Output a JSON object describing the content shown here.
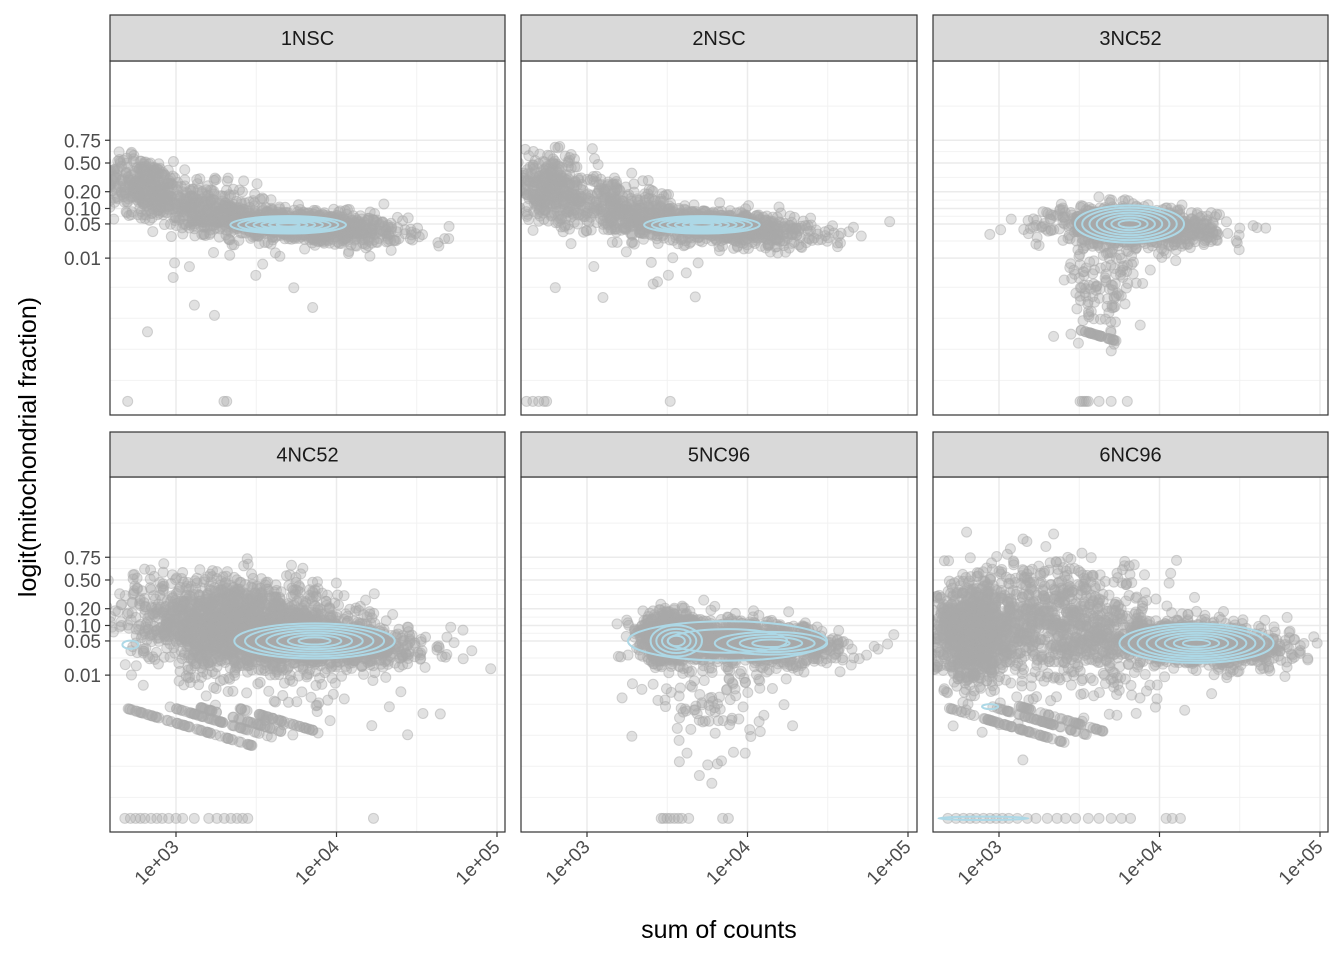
{
  "chart_data": {
    "type": "scatter",
    "xlabel": "sum of counts",
    "ylabel": "logit(mitochondrial fraction)",
    "x_scale": "log10",
    "y_scale": "logit",
    "xlim": [
      390,
      112000
    ],
    "x_ticks": [
      1000,
      10000,
      100000
    ],
    "x_tick_labels": [
      "1e+03",
      "1e+04",
      "1e+05"
    ],
    "y_ticks": [
      0.75,
      0.5,
      0.2,
      0.1,
      0.05,
      0.01
    ],
    "y_tick_labels": [
      "0.75",
      "0.50",
      "0.20",
      "0.10",
      "0.05",
      "0.01"
    ],
    "grid": true,
    "point_color": "#a9a9a9",
    "contour_color": "#add8e6",
    "strip_color": "#d9d9d9",
    "panels": [
      {
        "title": "1NSC",
        "clusters": [
          {
            "counts": 6300,
            "fraction": 0.045,
            "log10_sd": 0.3,
            "logit_sd": 0.4,
            "slope": -0.6,
            "n": 900
          },
          {
            "counts": 630,
            "fraction": 0.25,
            "log10_sd": 0.13,
            "logit_sd": 0.7,
            "slope": -1.2,
            "n": 350
          },
          {
            "counts": 1600,
            "fraction": 0.1,
            "log10_sd": 0.2,
            "logit_sd": 0.6,
            "slope": -1.0,
            "n": 350
          },
          {
            "counts": 2000,
            "fraction": 0.004,
            "log10_sd": 0.3,
            "logit_sd": 1.2,
            "slope": 0,
            "n": 12
          }
        ],
        "streaks": [],
        "zeros": {
          "counts": [
            500,
            1990,
            2070
          ],
          "fraction": 1e-05
        },
        "contours": [
          {
            "counts": 5000,
            "fraction": 0.048,
            "log10_rx": 0.36,
            "logit_ry": 0.42,
            "levels": 7
          }
        ]
      },
      {
        "title": "2NSC",
        "clusters": [
          {
            "counts": 6300,
            "fraction": 0.045,
            "log10_sd": 0.3,
            "logit_sd": 0.4,
            "slope": -0.6,
            "n": 900
          },
          {
            "counts": 600,
            "fraction": 0.22,
            "log10_sd": 0.14,
            "logit_sd": 0.8,
            "slope": -1.2,
            "n": 350
          },
          {
            "counts": 1600,
            "fraction": 0.1,
            "log10_sd": 0.2,
            "logit_sd": 0.6,
            "slope": -1.0,
            "n": 300
          },
          {
            "counts": 1800,
            "fraction": 0.004,
            "log10_sd": 0.3,
            "logit_sd": 1.2,
            "slope": 0,
            "n": 12
          }
        ],
        "streaks": [],
        "zeros": {
          "counts": [
            420,
            460,
            500,
            540,
            560,
            3300
          ],
          "fraction": 1e-05
        },
        "contours": [
          {
            "counts": 5200,
            "fraction": 0.048,
            "log10_rx": 0.36,
            "logit_ry": 0.42,
            "levels": 7
          }
        ]
      },
      {
        "title": "3NC52",
        "clusters": [
          {
            "counts": 7000,
            "fraction": 0.045,
            "log10_sd": 0.25,
            "logit_sd": 0.45,
            "slope": -0.3,
            "n": 900
          },
          {
            "counts": 4500,
            "fraction": 0.003,
            "log10_sd": 0.12,
            "logit_sd": 1.3,
            "slope": 0,
            "n": 130
          }
        ],
        "streaks": [
          {
            "k": 1,
            "counts": [
              3100,
              5600
            ],
            "n": 30
          }
        ],
        "zeros": {
          "counts": [
            3200,
            3300,
            3400,
            3500,
            3600,
            4200,
            5000,
            6300
          ],
          "fraction": 1e-05
        },
        "contours": [
          {
            "counts": 6500,
            "fraction": 0.05,
            "log10_rx": 0.34,
            "logit_ry": 0.9,
            "levels": 7
          }
        ]
      },
      {
        "title": "4NC52",
        "clusters": [
          {
            "counts": 2400,
            "fraction": 0.1,
            "log10_sd": 0.33,
            "logit_sd": 1.1,
            "slope": -0.6,
            "n": 1800
          },
          {
            "counts": 8000,
            "fraction": 0.05,
            "log10_sd": 0.28,
            "logit_sd": 0.5,
            "slope": -0.5,
            "n": 1200
          },
          {
            "counts": 8000,
            "fraction": 0.004,
            "log10_sd": 0.3,
            "logit_sd": 1.2,
            "slope": 0,
            "n": 40
          }
        ],
        "streaks": [
          {
            "k": 1,
            "counts": [
              480,
              3000
            ],
            "n": 60
          },
          {
            "k": 2,
            "counts": [
              900,
              4000
            ],
            "n": 50
          },
          {
            "k": 3,
            "counts": [
              1400,
              5500
            ],
            "n": 40
          },
          {
            "k": 5,
            "counts": [
              2500,
              7500
            ],
            "n": 40
          }
        ],
        "zeros": {
          "counts": [
            480,
            520,
            560,
            600,
            640,
            700,
            760,
            820,
            900,
            1000,
            1100,
            1300,
            1600,
            1800,
            2000,
            2200,
            2400,
            2600,
            2800,
            17000
          ],
          "fraction": 1e-05
        },
        "contours": [
          {
            "counts": 7300,
            "fraction": 0.05,
            "log10_rx": 0.5,
            "logit_ry": 0.85,
            "levels": 7
          },
          {
            "counts": 520,
            "fraction": 0.042,
            "log10_rx": 0.05,
            "logit_ry": 0.2,
            "levels": 1
          }
        ]
      },
      {
        "title": "5NC96",
        "clusters": [
          {
            "counts": 3300,
            "fraction": 0.06,
            "log10_sd": 0.1,
            "logit_sd": 0.6,
            "slope": 0,
            "n": 800
          },
          {
            "counts": 11000,
            "fraction": 0.045,
            "log10_sd": 0.27,
            "logit_sd": 0.5,
            "slope": -0.5,
            "n": 1000
          },
          {
            "counts": 6000,
            "fraction": 0.003,
            "log10_sd": 0.2,
            "logit_sd": 1.3,
            "slope": 0,
            "n": 100
          }
        ],
        "streaks": [],
        "zeros": {
          "counts": [
            2900,
            3000,
            3150,
            3300,
            3500,
            3700,
            3900,
            4300,
            7000,
            7600
          ],
          "fraction": 1e-05
        },
        "contours": [
          {
            "counts": 3600,
            "fraction": 0.05,
            "log10_rx": 0.16,
            "logit_ry": 0.75,
            "levels": 4
          },
          {
            "counts": 14000,
            "fraction": 0.045,
            "log10_rx": 0.35,
            "logit_ry": 0.55,
            "levels": 4
          },
          {
            "counts": 7500,
            "fraction": 0.05,
            "log10_rx": 0.62,
            "logit_ry": 0.95,
            "levels": 2
          }
        ]
      },
      {
        "title": "6NC96",
        "clusters": [
          {
            "counts": 700,
            "fraction": 0.07,
            "log10_sd": 0.12,
            "logit_sd": 1.2,
            "slope": 0,
            "n": 1000
          },
          {
            "counts": 2400,
            "fraction": 0.12,
            "log10_sd": 0.3,
            "logit_sd": 1.4,
            "slope": -0.5,
            "n": 800
          },
          {
            "counts": 16000,
            "fraction": 0.045,
            "log10_sd": 0.28,
            "logit_sd": 0.5,
            "slope": -0.5,
            "n": 1200
          },
          {
            "counts": 5000,
            "fraction": 0.004,
            "log10_sd": 0.3,
            "logit_sd": 1.1,
            "slope": 0,
            "n": 40
          }
        ],
        "streaks": [
          {
            "k": 1,
            "counts": [
              480,
              2600
            ],
            "n": 60
          },
          {
            "k": 2,
            "counts": [
              900,
              3500
            ],
            "n": 50
          },
          {
            "k": 3,
            "counts": [
              1300,
              4500
            ],
            "n": 40
          }
        ],
        "zeros": {
          "counts": [
            480,
            540,
            600,
            660,
            720,
            800,
            880,
            960,
            1050,
            1150,
            1300,
            1500,
            1700,
            2000,
            2300,
            2600,
            3000,
            3600,
            4200,
            5000,
            5800,
            6600,
            11000,
            12000,
            13500
          ],
          "fraction": 1e-05
        },
        "contours": [
          {
            "counts": 17000,
            "fraction": 0.045,
            "log10_rx": 0.48,
            "logit_ry": 0.95,
            "levels": 8
          },
          {
            "counts": 880,
            "fraction": 0.0022,
            "log10_rx": 0.05,
            "logit_ry": 0.12,
            "levels": 1
          },
          {
            "counts": 800,
            "fraction": 1e-05,
            "log10_rx": 0.28,
            "logit_ry": 0.08,
            "levels": 1
          }
        ]
      }
    ]
  }
}
